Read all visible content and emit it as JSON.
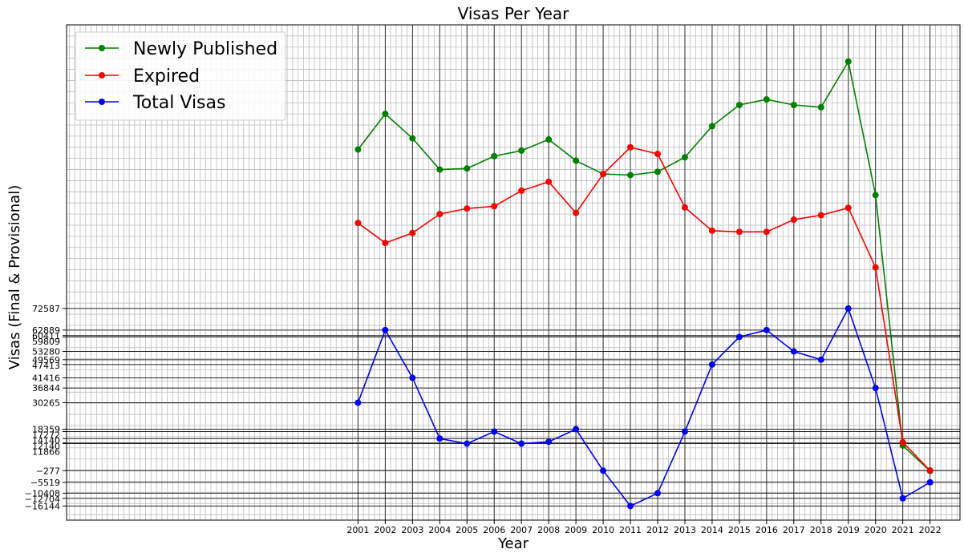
{
  "chart_data": {
    "type": "line",
    "title": "Visas Per Year",
    "xlabel": "Year",
    "ylabel": "Visas (Final & Provisional)",
    "x": [
      2001,
      2002,
      2003,
      2004,
      2005,
      2006,
      2007,
      2008,
      2009,
      2010,
      2011,
      2012,
      2013,
      2014,
      2015,
      2016,
      2017,
      2018,
      2019,
      2020,
      2021,
      2022
    ],
    "xlim": [
      1990.3,
      2023.1
    ],
    "ylim": [
      -22500,
      200000
    ],
    "yticks": [
      -16144,
      -12704,
      -10408,
      -5519,
      -277,
      11866,
      12140,
      14140,
      17272,
      18359,
      30265,
      36844,
      41416,
      47413,
      49569,
      53280,
      59809,
      60411,
      62889,
      72587
    ],
    "ytick_labels": [
      {
        "value": 72587,
        "label": "72587"
      },
      {
        "value": 62889,
        "label": "62889"
      },
      {
        "value": 60411,
        "label": "60411"
      },
      {
        "value": 59809,
        "label": "59809"
      },
      {
        "value": 53280,
        "label": "53280"
      },
      {
        "value": 49569,
        "label": "49569"
      },
      {
        "value": 47413,
        "label": "47413"
      },
      {
        "value": 41416,
        "label": "41416"
      },
      {
        "value": 36844,
        "label": "36844"
      },
      {
        "value": 30265,
        "label": "30265"
      },
      {
        "value": 18359,
        "label": "18359"
      },
      {
        "value": 17272,
        "label": "17272"
      },
      {
        "value": 14140,
        "label": "14140"
      },
      {
        "value": 12140,
        "label": "12140"
      },
      {
        "value": 11866,
        "label": "11866"
      },
      {
        "value": -277,
        "label": "−277"
      },
      {
        "value": -5519,
        "label": "−5519"
      },
      {
        "value": -10408,
        "label": "−10408"
      },
      {
        "value": -12704,
        "label": "−12704"
      },
      {
        "value": -16144,
        "label": "−16144"
      }
    ],
    "grid": true,
    "legend": "top-left",
    "series": [
      {
        "name": "Newly Published",
        "color": "#008000",
        "values": [
          144000,
          160000,
          149000,
          135000,
          135500,
          141000,
          143500,
          148500,
          139000,
          133000,
          132500,
          134000,
          140500,
          154500,
          164000,
          166500,
          164000,
          163000,
          183500,
          123500,
          11000,
          -400
        ]
      },
      {
        "name": "Expired",
        "color": "#ff0000",
        "values": [
          111000,
          102000,
          106500,
          115000,
          117500,
          118500,
          125500,
          129500,
          115500,
          133000,
          145000,
          142000,
          118000,
          107500,
          107000,
          107000,
          112500,
          114500,
          117800,
          91000,
          12500,
          -200
        ]
      },
      {
        "name": "Total Visas",
        "color": "#0000ff",
        "values": [
          30265,
          62889,
          41416,
          14140,
          11866,
          17272,
          11866,
          12704,
          18359,
          -277,
          -16144,
          -10408,
          17272,
          47413,
          59809,
          62889,
          53280,
          49569,
          72587,
          36844,
          -12704,
          -5519
        ]
      }
    ]
  }
}
